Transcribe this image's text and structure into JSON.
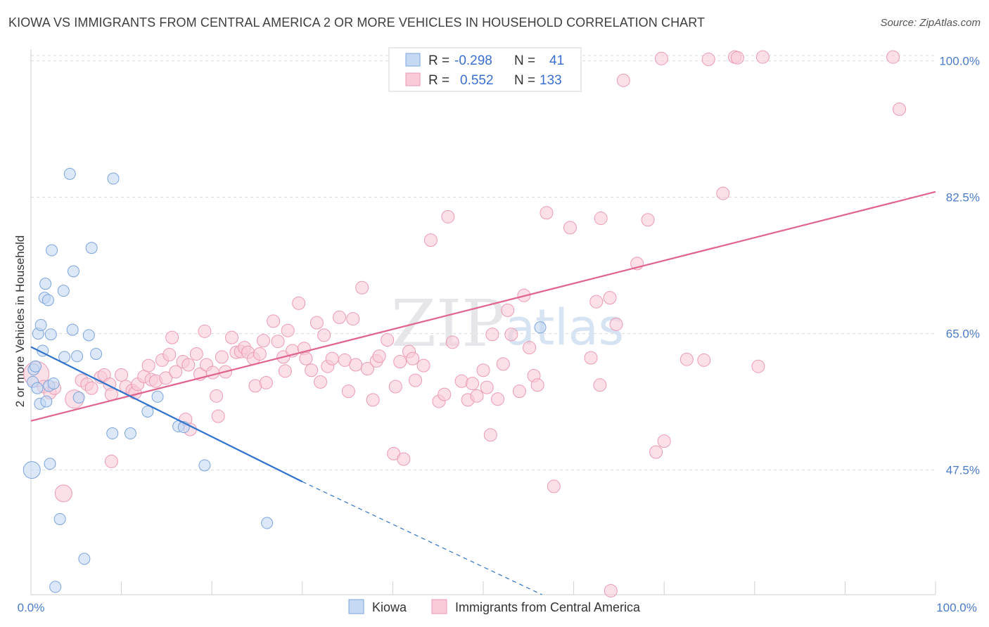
{
  "header": {
    "title": "KIOWA VS IMMIGRANTS FROM CENTRAL AMERICA 2 OR MORE VEHICLES IN HOUSEHOLD CORRELATION CHART",
    "source": "Source: ZipAtlas.com"
  },
  "watermark": {
    "zip": "ZIP",
    "atlas": "atlas"
  },
  "colors": {
    "kiowa_fill": "#c5d9f3",
    "kiowa_stroke": "#7ba4dc",
    "kiowa_line": "#2f73cc",
    "cam_fill": "#f9cbd8",
    "cam_stroke": "#ec9ab2",
    "cam_line": "#e0648e",
    "tick_text": "#4a7cc9",
    "grid": "#d9d9d9"
  },
  "stats": {
    "r_label": "R =",
    "n_label": "N =",
    "rows": [
      {
        "r": "-0.298",
        "n": "41"
      },
      {
        "r": "0.552",
        "n": "133"
      }
    ]
  },
  "chart_data": {
    "type": "scatter",
    "title": "KIOWA VS IMMIGRANTS FROM CENTRAL AMERICA 2 OR MORE VEHICLES IN HOUSEHOLD CORRELATION CHART",
    "xlabel": "",
    "ylabel": "2 or more Vehicles in Household",
    "xlim": [
      0,
      100
    ],
    "ylim": [
      31.5,
      101.5
    ],
    "y_ticks": [
      47.5,
      65.0,
      82.5,
      100.0
    ],
    "y_tick_labels": [
      "47.5%",
      "65.0%",
      "82.5%",
      "100.0%"
    ],
    "x_tick_labels": [
      "0.0%",
      "100.0%"
    ],
    "grid": true,
    "legend_position": "bottom-center",
    "legend": [
      "Kiowa",
      "Immigrants from Central America"
    ],
    "series": [
      {
        "name": "Kiowa",
        "trend": {
          "x0": 0,
          "y0": 63.3,
          "x1": 30,
          "y1": 46.0,
          "dashed_to_x": 56.5,
          "dashed_to_y": 31.5
        },
        "points": [
          [
            0.1,
            47.5,
            12
          ],
          [
            0.2,
            58.8,
            8
          ],
          [
            0.3,
            60.4,
            8
          ],
          [
            0.5,
            60.8,
            8
          ],
          [
            0.7,
            58.0,
            8
          ],
          [
            0.8,
            65.0,
            8
          ],
          [
            1.0,
            56.0,
            8
          ],
          [
            1.1,
            66.1,
            8
          ],
          [
            1.3,
            62.8,
            8
          ],
          [
            1.5,
            69.6,
            8
          ],
          [
            1.6,
            71.4,
            8
          ],
          [
            1.7,
            56.3,
            8
          ],
          [
            1.9,
            69.3,
            8
          ],
          [
            2.0,
            58.3,
            8
          ],
          [
            2.1,
            48.3,
            8
          ],
          [
            2.2,
            64.9,
            8
          ],
          [
            2.3,
            75.7,
            8
          ],
          [
            2.5,
            58.6,
            8
          ],
          [
            2.7,
            32.5,
            8
          ],
          [
            3.2,
            41.2,
            8
          ],
          [
            3.6,
            70.5,
            8
          ],
          [
            3.7,
            62.0,
            8
          ],
          [
            4.3,
            85.5,
            8
          ],
          [
            4.6,
            65.5,
            8
          ],
          [
            4.7,
            73.0,
            8
          ],
          [
            5.1,
            62.1,
            8
          ],
          [
            5.3,
            56.8,
            8
          ],
          [
            5.9,
            36.1,
            8
          ],
          [
            6.4,
            64.8,
            8
          ],
          [
            6.7,
            76.0,
            8
          ],
          [
            7.2,
            62.4,
            8
          ],
          [
            9.0,
            52.2,
            8
          ],
          [
            9.1,
            84.9,
            8
          ],
          [
            11.0,
            52.2,
            8
          ],
          [
            12.9,
            55.0,
            8
          ],
          [
            14.0,
            56.9,
            8
          ],
          [
            16.3,
            53.1,
            8
          ],
          [
            16.9,
            53.0,
            8
          ],
          [
            19.2,
            48.1,
            8
          ],
          [
            26.1,
            40.7,
            8
          ],
          [
            56.3,
            65.8,
            8
          ]
        ]
      },
      {
        "name": "Immigrants from Central America",
        "trend": {
          "x0": 0,
          "y0": 53.8,
          "x1": 100,
          "y1": 83.2
        },
        "points": [
          [
            0.6,
            59.8,
            18
          ],
          [
            1.4,
            58.2,
            9
          ],
          [
            2.1,
            57.4,
            9
          ],
          [
            2.6,
            58.0,
            9
          ],
          [
            4.8,
            56.6,
            13
          ],
          [
            5.6,
            59.0,
            9
          ],
          [
            6.2,
            58.5,
            9
          ],
          [
            6.7,
            58.0,
            9
          ],
          [
            3.6,
            44.5,
            12
          ],
          [
            7.7,
            59.4,
            9
          ],
          [
            8.1,
            59.7,
            9
          ],
          [
            8.7,
            58.5,
            9
          ],
          [
            8.9,
            57.2,
            9
          ],
          [
            8.9,
            48.6,
            9
          ],
          [
            10.0,
            59.7,
            9
          ],
          [
            10.5,
            58.2,
            9
          ],
          [
            11.2,
            57.7,
            9
          ],
          [
            11.5,
            57.4,
            9
          ],
          [
            11.8,
            58.5,
            9
          ],
          [
            12.5,
            59.5,
            9
          ],
          [
            13.0,
            60.9,
            9
          ],
          [
            13.3,
            59.1,
            9
          ],
          [
            13.8,
            58.9,
            9
          ],
          [
            14.5,
            61.6,
            9
          ],
          [
            14.9,
            59.3,
            9
          ],
          [
            15.3,
            62.3,
            9
          ],
          [
            15.6,
            64.5,
            9
          ],
          [
            16.0,
            60.1,
            9
          ],
          [
            16.8,
            61.4,
            9
          ],
          [
            17.1,
            54.0,
            9
          ],
          [
            17.4,
            61.0,
            9
          ],
          [
            17.6,
            52.7,
            9
          ],
          [
            18.3,
            62.4,
            9
          ],
          [
            18.7,
            59.8,
            9
          ],
          [
            19.2,
            65.3,
            9
          ],
          [
            19.4,
            61.0,
            9
          ],
          [
            20.1,
            60.0,
            9
          ],
          [
            20.5,
            57.0,
            9
          ],
          [
            20.7,
            54.4,
            9
          ],
          [
            21.1,
            62.0,
            9
          ],
          [
            21.5,
            60.1,
            9
          ],
          [
            22.2,
            64.5,
            9
          ],
          [
            22.7,
            62.6,
            9
          ],
          [
            23.2,
            62.7,
            9
          ],
          [
            23.6,
            63.2,
            9
          ],
          [
            24.0,
            62.6,
            9
          ],
          [
            24.6,
            61.8,
            9
          ],
          [
            24.8,
            58.3,
            9
          ],
          [
            25.3,
            62.4,
            9
          ],
          [
            25.7,
            64.1,
            9
          ],
          [
            26.0,
            58.7,
            9
          ],
          [
            26.8,
            66.6,
            9
          ],
          [
            27.3,
            64.0,
            9
          ],
          [
            27.9,
            62.0,
            9
          ],
          [
            28.1,
            60.2,
            9
          ],
          [
            28.4,
            65.4,
            9
          ],
          [
            28.9,
            62.8,
            9
          ],
          [
            29.6,
            68.9,
            9
          ],
          [
            30.2,
            63.1,
            9
          ],
          [
            30.4,
            61.8,
            9
          ],
          [
            31.0,
            60.3,
            9
          ],
          [
            31.6,
            66.4,
            9
          ],
          [
            32.0,
            58.8,
            9
          ],
          [
            32.4,
            64.8,
            9
          ],
          [
            32.8,
            60.8,
            9
          ],
          [
            33.3,
            61.8,
            9
          ],
          [
            34.1,
            67.1,
            9
          ],
          [
            34.7,
            61.6,
            9
          ],
          [
            35.1,
            57.6,
            9
          ],
          [
            35.6,
            66.9,
            9
          ],
          [
            35.9,
            61.0,
            9
          ],
          [
            36.6,
            70.9,
            9
          ],
          [
            37.2,
            60.5,
            9
          ],
          [
            37.8,
            56.5,
            9
          ],
          [
            38.2,
            61.5,
            9
          ],
          [
            38.5,
            62.1,
            9
          ],
          [
            39.4,
            64.2,
            9
          ],
          [
            40.1,
            49.6,
            9
          ],
          [
            40.3,
            58.2,
            9
          ],
          [
            40.8,
            61.4,
            9
          ],
          [
            41.2,
            48.9,
            9
          ],
          [
            41.8,
            62.7,
            9
          ],
          [
            42.2,
            61.8,
            9
          ],
          [
            42.5,
            59.0,
            9
          ],
          [
            43.4,
            60.9,
            9
          ],
          [
            44.2,
            77.0,
            9
          ],
          [
            45.1,
            56.3,
            9
          ],
          [
            45.7,
            57.2,
            9
          ],
          [
            46.1,
            80.0,
            9
          ],
          [
            46.6,
            63.9,
            9
          ],
          [
            47.6,
            58.9,
            9
          ],
          [
            48.3,
            56.5,
            9
          ],
          [
            48.8,
            58.6,
            9
          ],
          [
            49.3,
            57.0,
            9
          ],
          [
            50.0,
            60.3,
            9
          ],
          [
            50.4,
            58.1,
            9
          ],
          [
            50.8,
            52.0,
            9
          ],
          [
            51.0,
            64.9,
            9
          ],
          [
            51.6,
            56.6,
            9
          ],
          [
            52.2,
            61.1,
            9
          ],
          [
            52.7,
            68.0,
            9
          ],
          [
            53.1,
            64.9,
            9
          ],
          [
            54.0,
            57.6,
            9
          ],
          [
            54.5,
            69.9,
            9
          ],
          [
            55.1,
            63.2,
            9
          ],
          [
            55.6,
            59.6,
            9
          ],
          [
            56.0,
            58.4,
            9
          ],
          [
            57.0,
            80.5,
            9
          ],
          [
            57.8,
            45.4,
            9
          ],
          [
            59.6,
            78.6,
            9
          ],
          [
            61.9,
            61.9,
            9
          ],
          [
            62.5,
            69.1,
            9
          ],
          [
            63.0,
            79.8,
            9
          ],
          [
            62.9,
            58.4,
            9
          ],
          [
            64.0,
            69.6,
            9
          ],
          [
            64.7,
            66.2,
            9
          ],
          [
            65.5,
            97.5,
            9
          ],
          [
            67.0,
            74.0,
            9
          ],
          [
            68.2,
            79.6,
            9
          ],
          [
            69.1,
            49.8,
            9
          ],
          [
            70.0,
            51.2,
            9
          ],
          [
            72.5,
            61.7,
            9
          ],
          [
            74.4,
            61.6,
            9
          ],
          [
            74.9,
            100.2,
            9
          ],
          [
            76.5,
            83.0,
            9
          ],
          [
            77.8,
            100.5,
            9
          ],
          [
            78.1,
            100.4,
            9
          ],
          [
            80.4,
            60.8,
            9
          ],
          [
            80.9,
            100.5,
            9
          ],
          [
            95.3,
            100.5,
            9
          ],
          [
            96.0,
            93.8,
            9
          ],
          [
            64.1,
            32.0,
            9
          ],
          [
            69.7,
            100.3,
            9
          ]
        ]
      }
    ]
  }
}
